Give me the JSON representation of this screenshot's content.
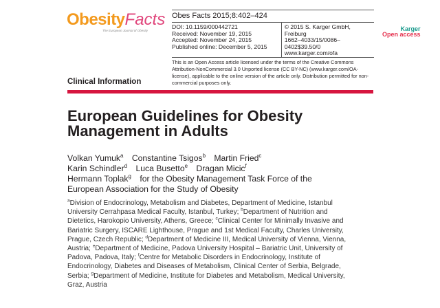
{
  "logo": {
    "word1": "Obesity",
    "word2": "Facts",
    "tagline": "The European Journal of Obesity",
    "colors": {
      "orange": "#f39a1e",
      "pink": "#e0457b"
    }
  },
  "header": {
    "journal_ref": "Obes Facts 2015;8:402–424",
    "left_meta": [
      "DOI: 10.1159/000442721",
      "Received: November 19, 2015",
      "Accepted: November 24, 2015",
      "Published online: December 5, 2015"
    ],
    "right_meta": [
      "© 2015 S. Karger GmbH, Freiburg",
      "1662–4033/15/0086–0402$39.50/0",
      "www.karger.com/ofa"
    ],
    "license": "This is an Open Access article licensed under the terms of the Creative Commons Attribution-NonCommercial 3.0 Unported license (CC BY-NC) (www.karger.com/OA-license), applicable to the online version of the article only. Distribution permitted for non-commercial purposes only."
  },
  "karger_badge": {
    "line1": "Karger",
    "line2": "Open access",
    "colors": {
      "teal": "#1a9a8c",
      "red": "#e5304d"
    }
  },
  "section": "Clinical Information",
  "accent_bar_color": "#d6153f",
  "title": "European Guidelines for Obesity Management in Adults",
  "authors": [
    {
      "name": "Volkan Yumuk",
      "sup": "a"
    },
    {
      "name": "Constantine Tsigos",
      "sup": "b"
    },
    {
      "name": "Martin Fried",
      "sup": "c"
    },
    {
      "name": "Karin Schindler",
      "sup": "d"
    },
    {
      "name": "Luca Busetto",
      "sup": "e"
    },
    {
      "name": "Dragan Micic",
      "sup": "f"
    },
    {
      "name": "Hermann Toplak",
      "sup": "g"
    }
  ],
  "task_force": "for the Obesity Management Task Force of the European Association for the Study of Obesity",
  "affiliations": [
    {
      "sup": "a",
      "text": "Division of Endocrinology, Metabolism and Diabetes, Department of Medicine, Istanbul University Cerrahpasa Medical Faculty, Istanbul, Turkey; "
    },
    {
      "sup": "b",
      "text": "Department of Nutrition and Dietetics, Harokopio University, Athens, Greece; "
    },
    {
      "sup": "c",
      "text": "Clinical Center for Minimally Invasive and Bariatric Surgery, ISCARE Lighthouse, Prague and 1st Medical Faculty, Charles University, Prague, Czech Republic; "
    },
    {
      "sup": "d",
      "text": "Department of Medicine III, Medical University of Vienna, Vienna, Austria; "
    },
    {
      "sup": "e",
      "text": "Department of Medicine, Padova University Hospital – Bariatric Unit, University of Padova, Padova, Italy; "
    },
    {
      "sup": "f",
      "text": "Centre for Metabolic Disorders in Endocrinology, Institute of Endocrinology, Diabetes and Diseases of Metabolism, Clinical Center of Serbia, Belgrade, Serbia; "
    },
    {
      "sup": "g",
      "text": "Department of Medicine, Institute for Diabetes and Metabolism, Medical University, Graz, Austria"
    }
  ]
}
